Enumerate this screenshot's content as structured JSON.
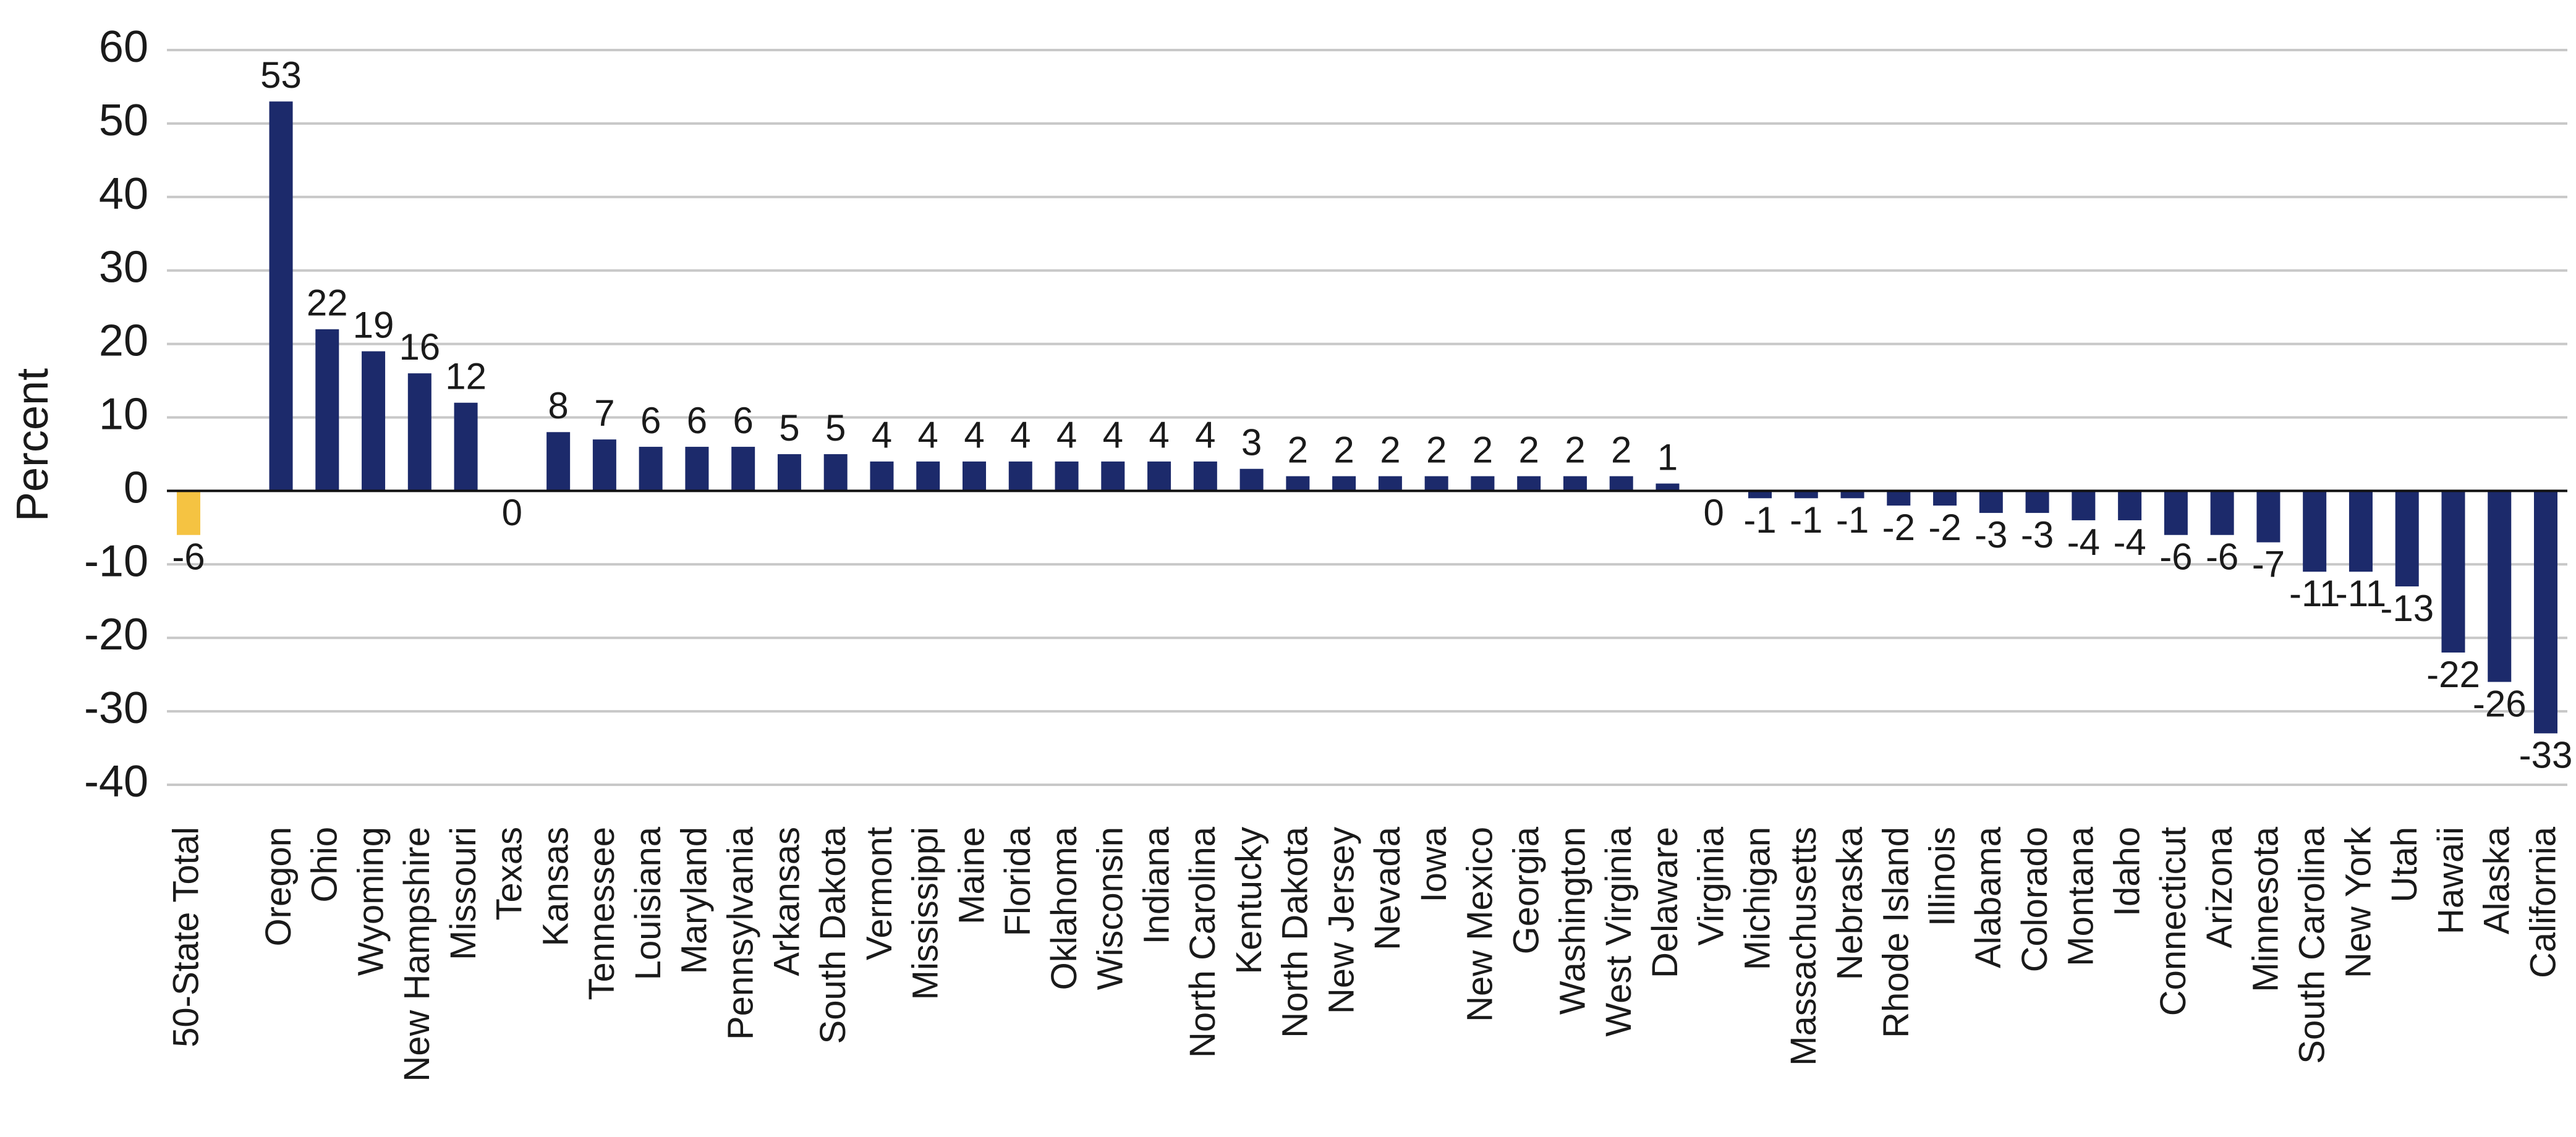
{
  "chart_data": {
    "type": "bar",
    "y_label": "Percent",
    "categories": [
      "50-State Total",
      null,
      "Oregon",
      "Ohio",
      "Wyoming",
      "New Hampshire",
      "Missouri",
      "Texas",
      "Kansas",
      "Tennessee",
      "Louisiana",
      "Maryland",
      "Pennsylvania",
      "Arkansas",
      "South Dakota",
      "Vermont",
      "Mississippi",
      "Maine",
      "Florida",
      "Oklahoma",
      "Wisconsin",
      "Indiana",
      "North Carolina",
      "Kentucky",
      "North Dakota",
      "New Jersey",
      "Nevada",
      "Iowa",
      "New Mexico",
      "Georgia",
      "Washington",
      "West Virginia",
      "Delaware",
      "Virginia",
      "Michigan",
      "Massachusetts",
      "Nebraska",
      "Rhode Island",
      "Illinois",
      "Alabama",
      "Colorado",
      "Montana",
      "Idaho",
      "Connecticut",
      "Arizona",
      "Minnesota",
      "South Carolina",
      "New York",
      "Utah",
      "Hawaii",
      "Alaska",
      "California"
    ],
    "values": [
      -6,
      null,
      53,
      22,
      19,
      16,
      12,
      0,
      8,
      7,
      6,
      6,
      6,
      5,
      5,
      4,
      4,
      4,
      4,
      4,
      4,
      4,
      4,
      3,
      2,
      2,
      2,
      2,
      2,
      2,
      2,
      2,
      1,
      0,
      -1,
      -1,
      -1,
      -2,
      -2,
      -3,
      -3,
      -4,
      -4,
      -6,
      -6,
      -7,
      -11,
      -11,
      -13,
      -22,
      -26,
      -33
    ],
    "color": "#1c2a6b",
    "highlight": {
      "index": 0,
      "color": "#f5c342"
    },
    "ylim": [
      -40,
      60
    ],
    "yticks": [
      -40,
      -30,
      -20,
      -10,
      0,
      10,
      20,
      30,
      40,
      50,
      60
    ],
    "grid": true
  }
}
